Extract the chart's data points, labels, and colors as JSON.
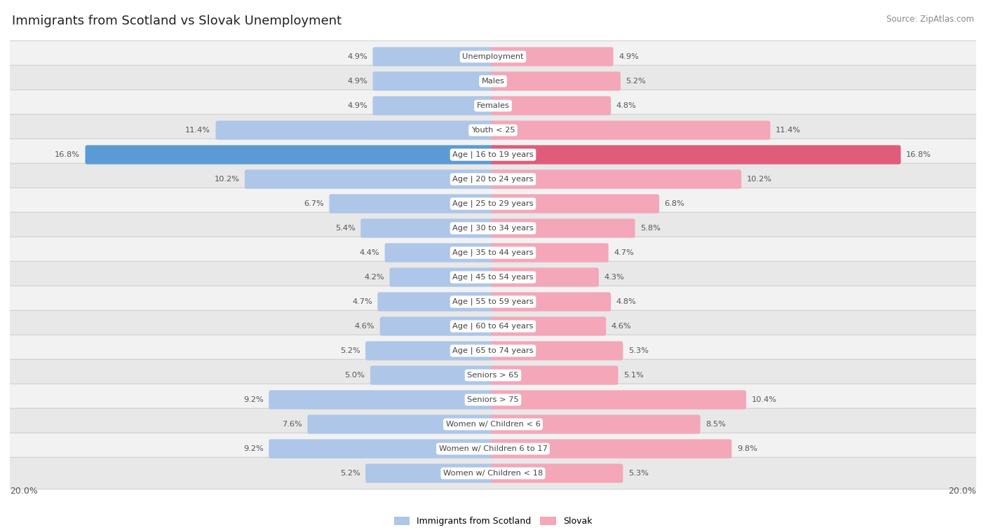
{
  "title": "Immigrants from Scotland vs Slovak Unemployment",
  "source": "Source: ZipAtlas.com",
  "categories": [
    "Unemployment",
    "Males",
    "Females",
    "Youth < 25",
    "Age | 16 to 19 years",
    "Age | 20 to 24 years",
    "Age | 25 to 29 years",
    "Age | 30 to 34 years",
    "Age | 35 to 44 years",
    "Age | 45 to 54 years",
    "Age | 55 to 59 years",
    "Age | 60 to 64 years",
    "Age | 65 to 74 years",
    "Seniors > 65",
    "Seniors > 75",
    "Women w/ Children < 6",
    "Women w/ Children 6 to 17",
    "Women w/ Children < 18"
  ],
  "left_values": [
    4.9,
    4.9,
    4.9,
    11.4,
    16.8,
    10.2,
    6.7,
    5.4,
    4.4,
    4.2,
    4.7,
    4.6,
    5.2,
    5.0,
    9.2,
    7.6,
    9.2,
    5.2
  ],
  "right_values": [
    4.9,
    5.2,
    4.8,
    11.4,
    16.8,
    10.2,
    6.8,
    5.8,
    4.7,
    4.3,
    4.8,
    4.6,
    5.3,
    5.1,
    10.4,
    8.5,
    9.8,
    5.3
  ],
  "left_color": "#aec6e8",
  "right_color": "#f4a7b9",
  "highlight_left_color": "#5b9bd5",
  "highlight_right_color": "#e05c7a",
  "highlight_row": 4,
  "background_color": "#ffffff",
  "max_value": 20.0,
  "bar_height": 0.62,
  "legend_left": "Immigrants from Scotland",
  "legend_right": "Slovak",
  "row_colors": [
    "#f2f2f2",
    "#e8e8e8"
  ]
}
